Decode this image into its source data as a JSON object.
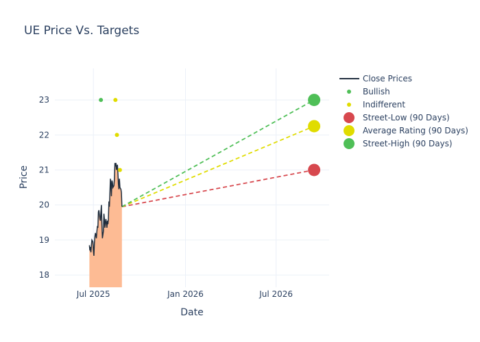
{
  "chart_data": {
    "type": "line",
    "title": "UE Price Vs. Targets",
    "xlabel": "Date",
    "ylabel": "Price",
    "x_range": [
      "2025-04-15",
      "2026-10-15"
    ],
    "y_range": [
      17.65,
      23.9
    ],
    "x_ticks": [
      {
        "date": "2025-07-01",
        "label": "Jul 2025"
      },
      {
        "date": "2026-01-01",
        "label": "Jan 2026"
      },
      {
        "date": "2026-07-01",
        "label": "Jul 2026"
      }
    ],
    "y_ticks": [
      18,
      19,
      20,
      21,
      22,
      23
    ],
    "grid": true,
    "legend_position": "top-right",
    "close_prices": {
      "name": "Close Prices",
      "color": "#1f2d3d",
      "fill_color": "#fdbb94",
      "points": [
        [
          "2025-06-23",
          18.85
        ],
        [
          "2025-06-24",
          18.7
        ],
        [
          "2025-06-25",
          18.8
        ],
        [
          "2025-06-26",
          18.65
        ],
        [
          "2025-06-27",
          18.85
        ],
        [
          "2025-06-28",
          19.0
        ],
        [
          "2025-06-30",
          18.95
        ],
        [
          "2025-07-01",
          18.7
        ],
        [
          "2025-07-02",
          18.55
        ],
        [
          "2025-07-03",
          18.9
        ],
        [
          "2025-07-04",
          19.1
        ],
        [
          "2025-07-05",
          19.2
        ],
        [
          "2025-07-07",
          19.05
        ],
        [
          "2025-07-08",
          19.25
        ],
        [
          "2025-07-09",
          19.4
        ],
        [
          "2025-07-10",
          19.35
        ],
        [
          "2025-07-11",
          19.8
        ],
        [
          "2025-07-12",
          19.85
        ],
        [
          "2025-07-14",
          19.6
        ],
        [
          "2025-07-15",
          19.55
        ],
        [
          "2025-07-16",
          19.8
        ],
        [
          "2025-07-17",
          20.0
        ],
        [
          "2025-07-18",
          19.45
        ],
        [
          "2025-07-19",
          19.05
        ],
        [
          "2025-07-21",
          19.25
        ],
        [
          "2025-07-22",
          19.75
        ],
        [
          "2025-07-23",
          19.6
        ],
        [
          "2025-07-24",
          19.35
        ],
        [
          "2025-07-25",
          19.5
        ],
        [
          "2025-07-26",
          19.6
        ],
        [
          "2025-07-28",
          19.35
        ],
        [
          "2025-07-29",
          19.55
        ],
        [
          "2025-07-30",
          19.45
        ],
        [
          "2025-07-31",
          19.6
        ],
        [
          "2025-08-01",
          20.1
        ],
        [
          "2025-08-02",
          19.95
        ],
        [
          "2025-08-04",
          20.75
        ],
        [
          "2025-08-05",
          20.6
        ],
        [
          "2025-08-06",
          20.25
        ],
        [
          "2025-08-07",
          20.7
        ],
        [
          "2025-08-08",
          20.65
        ],
        [
          "2025-08-09",
          20.5
        ],
        [
          "2025-08-11",
          20.55
        ],
        [
          "2025-08-12",
          20.75
        ],
        [
          "2025-08-13",
          21.2
        ],
        [
          "2025-08-14",
          21.1
        ],
        [
          "2025-08-15",
          21.2
        ],
        [
          "2025-08-16",
          21.0
        ],
        [
          "2025-08-18",
          21.15
        ],
        [
          "2025-08-19",
          20.9
        ],
        [
          "2025-08-20",
          20.6
        ],
        [
          "2025-08-21",
          20.45
        ],
        [
          "2025-08-22",
          20.75
        ],
        [
          "2025-08-23",
          20.5
        ],
        [
          "2025-08-25",
          20.45
        ],
        [
          "2025-08-26",
          20.35
        ],
        [
          "2025-08-27",
          19.95
        ]
      ]
    },
    "bullish": {
      "name": "Bullish",
      "color": "#4fbf57",
      "points": [
        [
          "2025-07-16",
          23
        ]
      ]
    },
    "indifferent": {
      "name": "Indifferent",
      "color": "#e0dc00",
      "points": [
        [
          "2025-08-14",
          23
        ],
        [
          "2025-08-17",
          22
        ],
        [
          "2025-08-23",
          21
        ]
      ]
    },
    "targets": [
      {
        "name": "Street-Low (90 Days)",
        "color": "#d7484e",
        "start": [
          "2025-08-27",
          19.95
        ],
        "end": [
          "2026-09-15",
          21
        ]
      },
      {
        "name": "Average Rating (90 Days)",
        "color": "#e0dc00",
        "start": [
          "2025-08-27",
          19.95
        ],
        "end": [
          "2026-09-15",
          22.25
        ]
      },
      {
        "name": "Street-High (90 Days)",
        "color": "#4fbf57",
        "start": [
          "2025-08-27",
          19.95
        ],
        "end": [
          "2026-09-15",
          23
        ]
      }
    ],
    "legend": [
      {
        "label": "Close Prices",
        "kind": "line",
        "color": "#1f2d3d"
      },
      {
        "label": "Bullish",
        "kind": "small-dot",
        "color": "#4fbf57"
      },
      {
        "label": "Indifferent",
        "kind": "small-dot",
        "color": "#e0dc00"
      },
      {
        "label": "Street-Low (90 Days)",
        "kind": "big-dot",
        "color": "#d7484e"
      },
      {
        "label": "Average Rating (90 Days)",
        "kind": "big-dot",
        "color": "#e0dc00"
      },
      {
        "label": "Street-High (90 Days)",
        "kind": "big-dot",
        "color": "#4fbf57"
      }
    ]
  }
}
